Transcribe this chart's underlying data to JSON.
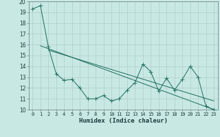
{
  "bg_color": "#c8e8e4",
  "grid_color": "#b0ceca",
  "line_color": "#1a6b5a",
  "xlim": [
    -0.5,
    23.5
  ],
  "ylim": [
    10,
    20
  ],
  "yticks": [
    10,
    11,
    12,
    13,
    14,
    15,
    16,
    17,
    18,
    19,
    20
  ],
  "xticks": [
    0,
    1,
    2,
    3,
    4,
    5,
    6,
    7,
    8,
    9,
    10,
    11,
    12,
    13,
    14,
    15,
    16,
    17,
    18,
    19,
    20,
    21,
    22,
    23
  ],
  "xlabel": "Humidex (Indice chaleur)",
  "line1_x": [
    0,
    1,
    2,
    3,
    4,
    5,
    6,
    7,
    8,
    9,
    10,
    11,
    12,
    13,
    14,
    15,
    16,
    17,
    18,
    19,
    20,
    21,
    22,
    23
  ],
  "line1_y": [
    19.3,
    19.6,
    15.8,
    13.3,
    12.7,
    12.8,
    12.0,
    11.0,
    11.0,
    11.3,
    10.8,
    11.0,
    11.8,
    12.5,
    14.2,
    13.5,
    11.7,
    12.9,
    11.8,
    12.8,
    14.0,
    13.0,
    10.3,
    10.0
  ],
  "line2_x": [
    1,
    23
  ],
  "line2_y": [
    15.9,
    10.0
  ],
  "line3_x": [
    2,
    23
  ],
  "line3_y": [
    15.5,
    10.8
  ],
  "marker_size": 2.0,
  "lw": 0.7
}
